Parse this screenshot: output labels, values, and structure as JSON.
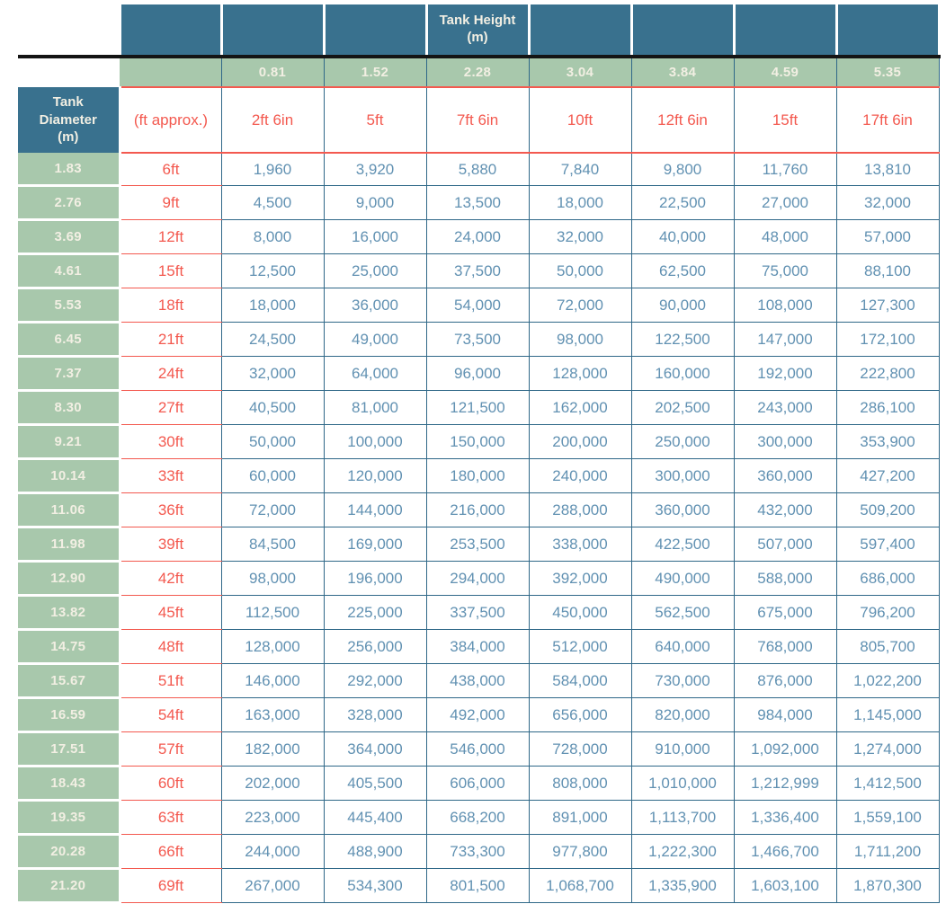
{
  "chart_data": {
    "type": "table",
    "title": "Tank Height (m)",
    "corner": {
      "row_header": "Tank Diameter (m)",
      "row_subheader": "(ft approx.)"
    },
    "column_headers_m": [
      "0.81",
      "1.52",
      "2.28",
      "3.04",
      "3.84",
      "4.59",
      "5.35"
    ],
    "column_headers_ft": [
      "2ft 6in",
      "5ft",
      "7ft 6in",
      "10ft",
      "12ft 6in",
      "15ft",
      "17ft 6in"
    ],
    "rows": [
      {
        "diameter_m": "1.83",
        "diameter_ft": "6ft",
        "capacities": [
          "1,960",
          "3,920",
          "5,880",
          "7,840",
          "9,800",
          "11,760",
          "13,810"
        ]
      },
      {
        "diameter_m": "2.76",
        "diameter_ft": "9ft",
        "capacities": [
          "4,500",
          "9,000",
          "13,500",
          "18,000",
          "22,500",
          "27,000",
          "32,000"
        ]
      },
      {
        "diameter_m": "3.69",
        "diameter_ft": "12ft",
        "capacities": [
          "8,000",
          "16,000",
          "24,000",
          "32,000",
          "40,000",
          "48,000",
          "57,000"
        ]
      },
      {
        "diameter_m": "4.61",
        "diameter_ft": "15ft",
        "capacities": [
          "12,500",
          "25,000",
          "37,500",
          "50,000",
          "62,500",
          "75,000",
          "88,100"
        ]
      },
      {
        "diameter_m": "5.53",
        "diameter_ft": "18ft",
        "capacities": [
          "18,000",
          "36,000",
          "54,000",
          "72,000",
          "90,000",
          "108,000",
          "127,300"
        ]
      },
      {
        "diameter_m": "6.45",
        "diameter_ft": "21ft",
        "capacities": [
          "24,500",
          "49,000",
          "73,500",
          "98,000",
          "122,500",
          "147,000",
          "172,100"
        ]
      },
      {
        "diameter_m": "7.37",
        "diameter_ft": "24ft",
        "capacities": [
          "32,000",
          "64,000",
          "96,000",
          "128,000",
          "160,000",
          "192,000",
          "222,800"
        ]
      },
      {
        "diameter_m": "8.30",
        "diameter_ft": "27ft",
        "capacities": [
          "40,500",
          "81,000",
          "121,500",
          "162,000",
          "202,500",
          "243,000",
          "286,100"
        ]
      },
      {
        "diameter_m": "9.21",
        "diameter_ft": "30ft",
        "capacities": [
          "50,000",
          "100,000",
          "150,000",
          "200,000",
          "250,000",
          "300,000",
          "353,900"
        ]
      },
      {
        "diameter_m": "10.14",
        "diameter_ft": "33ft",
        "capacities": [
          "60,000",
          "120,000",
          "180,000",
          "240,000",
          "300,000",
          "360,000",
          "427,200"
        ]
      },
      {
        "diameter_m": "11.06",
        "diameter_ft": "36ft",
        "capacities": [
          "72,000",
          "144,000",
          "216,000",
          "288,000",
          "360,000",
          "432,000",
          "509,200"
        ]
      },
      {
        "diameter_m": "11.98",
        "diameter_ft": "39ft",
        "capacities": [
          "84,500",
          "169,000",
          "253,500",
          "338,000",
          "422,500",
          "507,000",
          "597,400"
        ]
      },
      {
        "diameter_m": "12.90",
        "diameter_ft": "42ft",
        "capacities": [
          "98,000",
          "196,000",
          "294,000",
          "392,000",
          "490,000",
          "588,000",
          "686,000"
        ]
      },
      {
        "diameter_m": "13.82",
        "diameter_ft": "45ft",
        "capacities": [
          "112,500",
          "225,000",
          "337,500",
          "450,000",
          "562,500",
          "675,000",
          "796,200"
        ]
      },
      {
        "diameter_m": "14.75",
        "diameter_ft": "48ft",
        "capacities": [
          "128,000",
          "256,000",
          "384,000",
          "512,000",
          "640,000",
          "768,000",
          "805,700"
        ]
      },
      {
        "diameter_m": "15.67",
        "diameter_ft": "51ft",
        "capacities": [
          "146,000",
          "292,000",
          "438,000",
          "584,000",
          "730,000",
          "876,000",
          "1,022,200"
        ]
      },
      {
        "diameter_m": "16.59",
        "diameter_ft": "54ft",
        "capacities": [
          "163,000",
          "328,000",
          "492,000",
          "656,000",
          "820,000",
          "984,000",
          "1,145,000"
        ]
      },
      {
        "diameter_m": "17.51",
        "diameter_ft": "57ft",
        "capacities": [
          "182,000",
          "364,000",
          "546,000",
          "728,000",
          "910,000",
          "1,092,000",
          "1,274,000"
        ]
      },
      {
        "diameter_m": "18.43",
        "diameter_ft": "60ft",
        "capacities": [
          "202,000",
          "405,500",
          "606,000",
          "808,000",
          "1,010,000",
          "1,212,999",
          "1,412,500"
        ]
      },
      {
        "diameter_m": "19.35",
        "diameter_ft": "63ft",
        "capacities": [
          "223,000",
          "445,400",
          "668,200",
          "891,000",
          "1,113,700",
          "1,336,400",
          "1,559,100"
        ]
      },
      {
        "diameter_m": "20.28",
        "diameter_ft": "66ft",
        "capacities": [
          "244,000",
          "488,900",
          "733,300",
          "977,800",
          "1,222,300",
          "1,466,700",
          "1,711,200"
        ]
      },
      {
        "diameter_m": "21.20",
        "diameter_ft": "69ft",
        "capacities": [
          "267,000",
          "534,300",
          "801,500",
          "1,068,700",
          "1,335,900",
          "1,603,100",
          "1,870,300"
        ]
      }
    ]
  },
  "colors": {
    "header_teal": "#39718e",
    "header_green": "#a8c8ac",
    "value_text_blue": "#6191b2",
    "accent_red": "#f3594f",
    "grid_teal": "#2f6888",
    "divider_black": "#141414",
    "header_text_cream": "#f2efe3"
  }
}
